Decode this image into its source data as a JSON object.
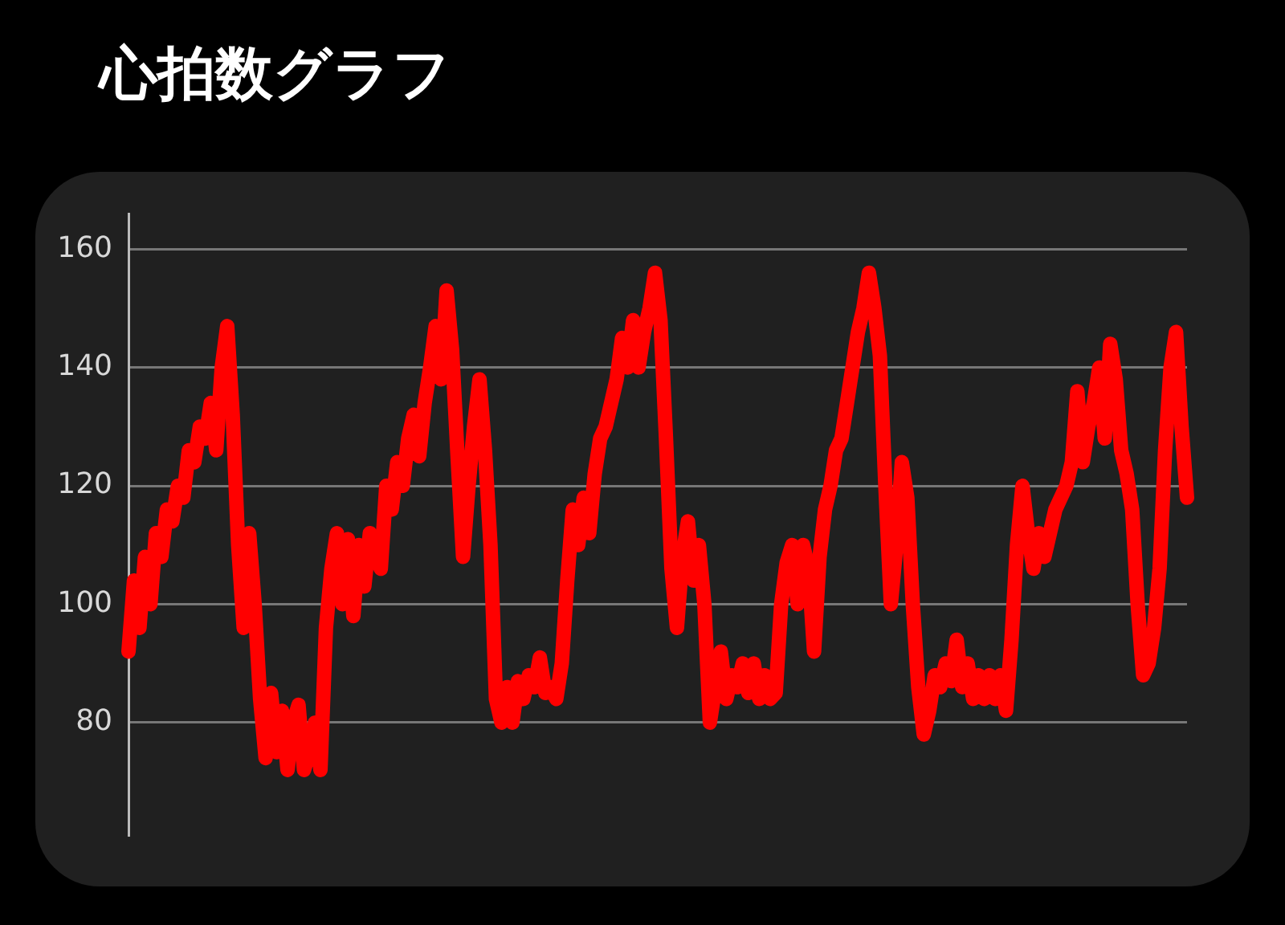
{
  "chart_data": {
    "type": "line",
    "title": "心拍数グラフ",
    "categories": [
      null,
      null,
      null,
      null,
      null,
      null,
      null,
      null,
      null,
      null,
      null,
      null,
      null,
      null,
      null,
      null,
      null,
      null,
      null,
      null,
      null,
      null,
      null,
      null,
      null,
      null,
      null,
      null,
      null,
      null,
      null,
      null,
      null,
      null,
      null,
      null,
      null,
      null,
      null,
      null,
      null,
      null,
      null,
      null,
      null,
      null,
      null,
      null,
      null,
      null,
      null,
      null,
      null,
      null,
      null,
      null,
      null,
      null,
      null,
      null,
      null,
      null,
      null,
      null,
      null,
      null,
      null,
      null,
      null,
      null,
      null,
      null,
      null,
      null,
      null,
      null,
      null,
      null,
      null,
      null,
      null,
      null,
      null,
      null,
      null,
      null,
      null,
      null,
      null,
      null,
      null,
      null,
      null,
      null,
      null,
      null,
      null,
      null,
      null,
      null,
      null,
      null,
      null,
      null,
      null,
      null,
      null,
      null,
      null,
      null,
      null,
      null,
      null,
      null,
      null,
      null,
      null,
      null,
      null,
      null,
      null,
      null,
      null,
      null,
      null,
      null,
      null,
      null,
      null,
      null,
      null,
      null,
      null,
      null,
      null,
      null,
      null,
      null,
      null,
      null,
      null,
      null,
      null,
      null,
      null,
      null,
      null,
      null,
      null,
      null,
      null,
      null,
      null,
      null,
      null,
      null,
      null,
      null,
      null,
      null,
      null,
      null,
      null,
      null,
      null,
      null,
      null,
      null,
      null,
      null,
      null,
      null,
      null,
      null,
      null,
      null,
      null,
      null,
      null,
      null,
      null,
      null,
      null,
      null,
      null,
      null,
      null,
      null,
      null,
      null,
      null,
      null,
      null,
      null
    ],
    "series": [
      {
        "color": "#ff0000",
        "values": [
          92,
          104,
          96,
          108,
          100,
          112,
          108,
          116,
          114,
          120,
          118,
          126,
          124,
          130,
          128,
          134,
          126,
          140,
          147,
          132,
          110,
          96,
          112,
          100,
          84,
          74,
          85,
          75,
          82,
          72,
          80,
          83,
          72,
          75,
          80,
          72,
          96,
          106,
          112,
          100,
          111,
          98,
          110,
          103,
          112,
          108,
          106,
          120,
          116,
          124,
          120,
          128,
          132,
          125,
          134,
          140,
          147,
          138,
          153,
          143,
          125,
          108,
          120,
          130,
          138,
          126,
          110,
          84,
          80,
          86,
          80,
          87,
          84,
          88,
          86,
          91,
          85,
          86,
          84,
          90,
          104,
          116,
          110,
          118,
          112,
          122,
          128,
          130,
          134,
          138,
          145,
          140,
          148,
          140,
          146,
          150,
          156,
          148,
          128,
          106,
          96,
          108,
          114,
          104,
          110,
          100,
          80,
          86,
          92,
          84,
          88,
          86,
          90,
          85,
          90,
          84,
          88,
          84,
          85,
          100,
          107,
          110,
          100,
          110,
          106,
          92,
          108,
          116,
          120,
          126,
          128,
          134,
          140,
          146,
          150,
          156,
          150,
          142,
          120,
          100,
          110,
          124,
          118,
          100,
          86,
          78,
          82,
          88,
          86,
          90,
          87,
          94,
          86,
          90,
          84,
          88,
          84,
          88,
          84,
          88,
          82,
          94,
          110,
          120,
          112,
          106,
          112,
          108,
          112,
          116,
          118,
          120,
          124,
          136,
          124,
          130,
          134,
          140,
          128,
          144,
          138,
          126,
          122,
          116,
          100,
          88,
          90,
          96,
          106,
          126,
          140,
          146,
          130,
          118
        ]
      }
    ],
    "ylim": [
      61,
      166
    ],
    "yticks": [
      80,
      100,
      120,
      140,
      160
    ],
    "grid": "y",
    "legend": false,
    "marker": "none",
    "line_style": "solid"
  }
}
